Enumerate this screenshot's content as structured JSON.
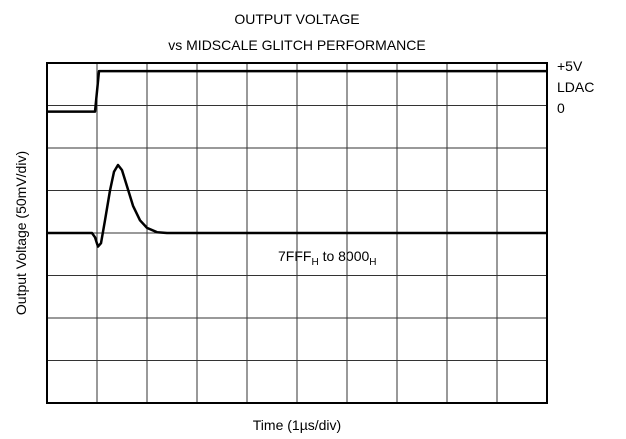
{
  "chart_data": {
    "type": "line",
    "title": [
      "OUTPUT VOLTAGE",
      "vs MIDSCALE GLITCH PERFORMANCE"
    ],
    "xlabel": "Time (1µs/div)",
    "ylabel": "Output Voltage (50mV/div)",
    "xlim": [
      0,
      10
    ],
    "ylim": [
      -200,
      200
    ],
    "y2lim": [
      -36,
      6
    ],
    "xticks": [
      0,
      1,
      2,
      3,
      4,
      5,
      6,
      7,
      8,
      9,
      10
    ],
    "yticks": [
      -200,
      -150,
      -100,
      -50,
      0,
      50,
      100,
      150,
      200
    ],
    "grid": true,
    "side_labels": [
      "+5V",
      "LDAC",
      "0"
    ],
    "annotation": [
      "7FFF",
      "H",
      " to 8000",
      "H"
    ],
    "series": [
      {
        "name": "LDAC",
        "color": "#000000",
        "axis": "y2",
        "x": [
          0,
          0.96,
          1.04,
          10
        ],
        "values": [
          0,
          0,
          5,
          5
        ]
      },
      {
        "color": "#000000",
        "x": [
          0,
          0.9,
          0.96,
          1.02,
          1.08,
          1.16,
          1.26,
          1.34,
          1.42,
          1.5,
          1.6,
          1.72,
          1.86,
          2.0,
          2.2,
          2.4,
          10
        ],
        "values": [
          0,
          0,
          -5,
          -16,
          -12,
          15,
          50,
          72,
          80,
          74,
          55,
          32,
          15,
          6,
          1,
          0,
          0
        ]
      }
    ]
  }
}
